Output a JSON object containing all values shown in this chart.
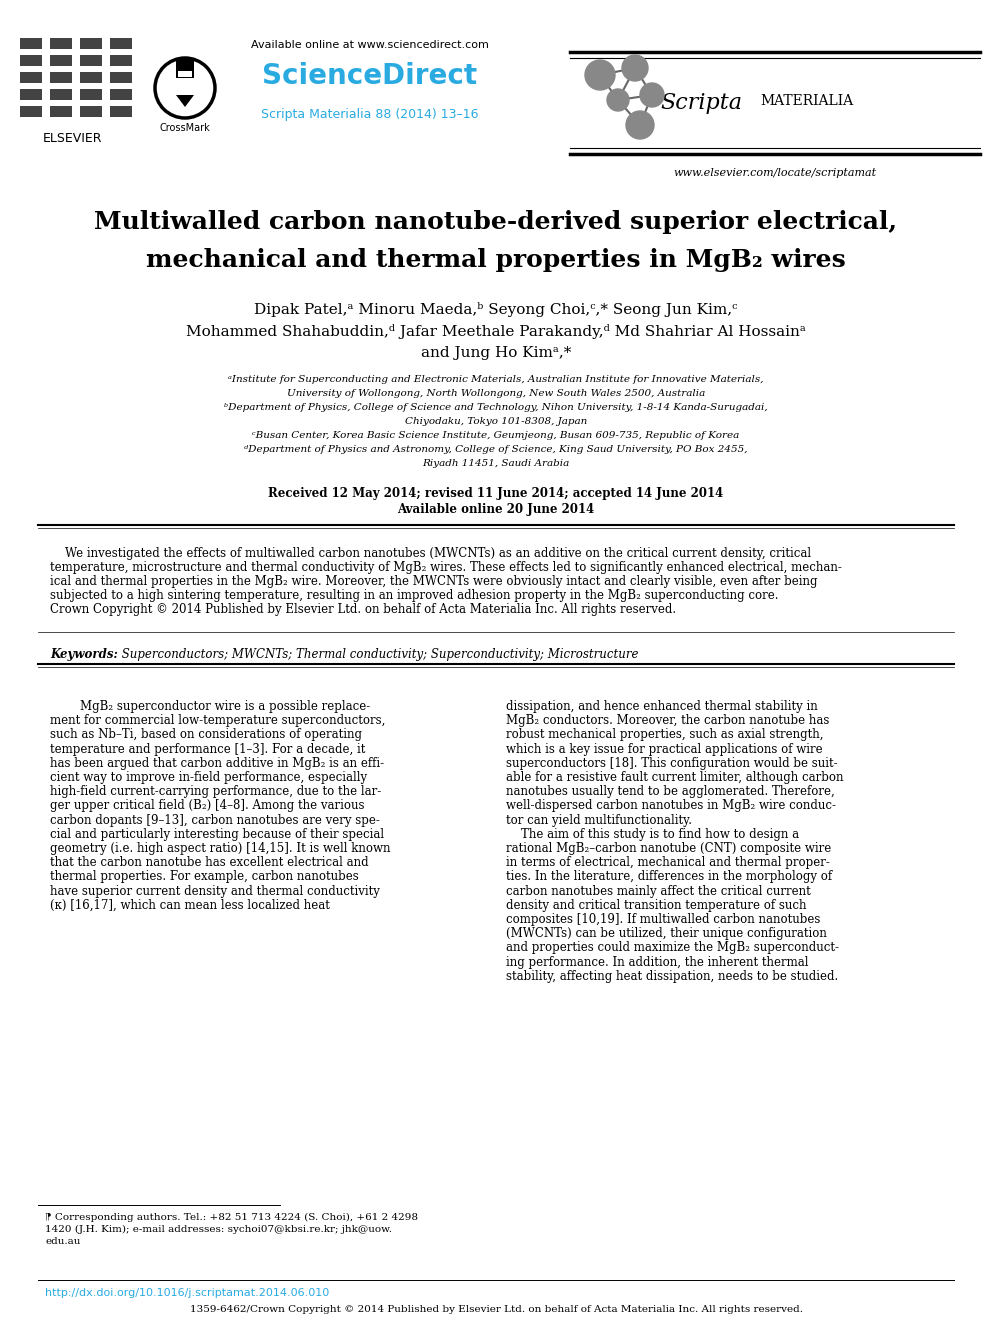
{
  "bg_color": "#ffffff",
  "title_line1": "Multiwalled carbon nanotube-derived superior electrical,",
  "title_line2": "mechanical and thermal properties in MgB₂ wires",
  "journal_info": "Scripta Materialia 88 (2014) 13–16",
  "available_online": "Available online at www.sciencedirect.com",
  "sciencedirect_text": "ScienceDirect",
  "scripta_text": "Scripta",
  "materialia_text": "MATERIALIA",
  "website": "www.elsevier.com/locate/scriptamat",
  "elsevier_text": "ELSEVIER",
  "authors_line1": "Dipak Patel,ᵃ Minoru Maeda,ᵇ Seyong Choi,ᶜ,* Seong Jun Kim,ᶜ",
  "authors_line2": "Mohammed Shahabuddin,ᵈ Jafar Meethale Parakandy,ᵈ Md Shahriar Al Hossainᵃ",
  "authors_line3": "and Jung Ho Kimᵃ,*",
  "affil_a": "ᵃInstitute for Superconducting and Electronic Materials, Australian Institute for Innovative Materials,",
  "affil_a2": "University of Wollongong, North Wollongong, New South Wales 2500, Australia",
  "affil_b": "ᵇDepartment of Physics, College of Science and Technology, Nihon University, 1-8-14 Kanda-Surugadai,",
  "affil_b2": "Chiyodaku, Tokyo 101-8308, Japan",
  "affil_c": "ᶜBusan Center, Korea Basic Science Institute, Geumjeong, Busan 609-735, Republic of Korea",
  "affil_d": "ᵈDepartment of Physics and Astronomy, College of Science, King Saud University, PO Box 2455,",
  "affil_d2": "Riyadh 11451, Saudi Arabia",
  "dates": "Received 12 May 2014; revised 11 June 2014; accepted 14 June 2014",
  "available": "Available online 20 June 2014",
  "abstract_indent": "    We investigated the effects of multiwalled carbon nanotubes (MWCNTs) as an additive on the critical current density, critical",
  "abstract_l2": "temperature, microstructure and thermal conductivity of MgB₂ wires. These effects led to significantly enhanced electrical, mechan-",
  "abstract_l3": "ical and thermal properties in the MgB₂ wire. Moreover, the MWCNTs were obviously intact and clearly visible, even after being",
  "abstract_l4": "subjected to a high sintering temperature, resulting in an improved adhesion property in the MgB₂ superconducting core.",
  "abstract_l5": "Crown Copyright © 2014 Published by Elsevier Ltd. on behalf of Acta Materialia Inc. All rights reserved.",
  "keywords_label": "Keywords:",
  "keywords": " Superconductors; MWCNTs; Thermal conductivity; Superconductivity; Microstructure",
  "body_col1_lines": [
    "        MgB₂ superconductor wire is a possible replace-",
    "ment for commercial low-temperature superconductors,",
    "such as Nb–Ti, based on considerations of operating",
    "temperature and performance [1–3]. For a decade, it",
    "has been argued that carbon additive in MgB₂ is an effi-",
    "cient way to improve in-field performance, especially",
    "high-field current-carrying performance, due to the lar-",
    "ger upper critical field (B₂) [4–8]. Among the various",
    "carbon dopants [9–13], carbon nanotubes are very spe-",
    "cial and particularly interesting because of their special",
    "geometry (i.e. high aspect ratio) [14,15]. It is well known",
    "that the carbon nanotube has excellent electrical and",
    "thermal properties. For example, carbon nanotubes",
    "have superior current density and thermal conductivity",
    "(κ) [16,17], which can mean less localized heat"
  ],
  "body_col2_lines": [
    "dissipation, and hence enhanced thermal stability in",
    "MgB₂ conductors. Moreover, the carbon nanotube has",
    "robust mechanical properties, such as axial strength,",
    "which is a key issue for practical applications of wire",
    "superconductors [18]. This configuration would be suit-",
    "able for a resistive fault current limiter, although carbon",
    "nanotubes usually tend to be agglomerated. Therefore,",
    "well-dispersed carbon nanotubes in MgB₂ wire conduc-",
    "tor can yield multifunctionality.",
    "    The aim of this study is to find how to design a",
    "rational MgB₂–carbon nanotube (CNT) composite wire",
    "in terms of electrical, mechanical and thermal proper-",
    "ties. In the literature, differences in the morphology of",
    "carbon nanotubes mainly affect the critical current",
    "density and critical transition temperature of such",
    "composites [10,19]. If multiwalled carbon nanotubes",
    "(MWCNTs) can be utilized, their unique configuration",
    "and properties could maximize the MgB₂ superconduct-",
    "ing performance. In addition, the inherent thermal",
    "stability, affecting heat dissipation, needs to be studied."
  ],
  "footnote_lines": [
    "⁋ Corresponding authors. Tel.: +82 51 713 4224 (S. Choi), +61 2 4298",
    "1420 (J.H. Kim); e-mail addresses: sychoi07@kbsi.re.kr; jhk@uow.",
    "edu.au"
  ],
  "doi_text": "http://dx.doi.org/10.1016/j.scriptamat.2014.06.010",
  "issn_text": "1359-6462/Crown Copyright © 2014 Published by Elsevier Ltd. on behalf of Acta Materialia Inc. All rights reserved.",
  "cyan_color": "#29ABE2",
  "black": "#000000"
}
